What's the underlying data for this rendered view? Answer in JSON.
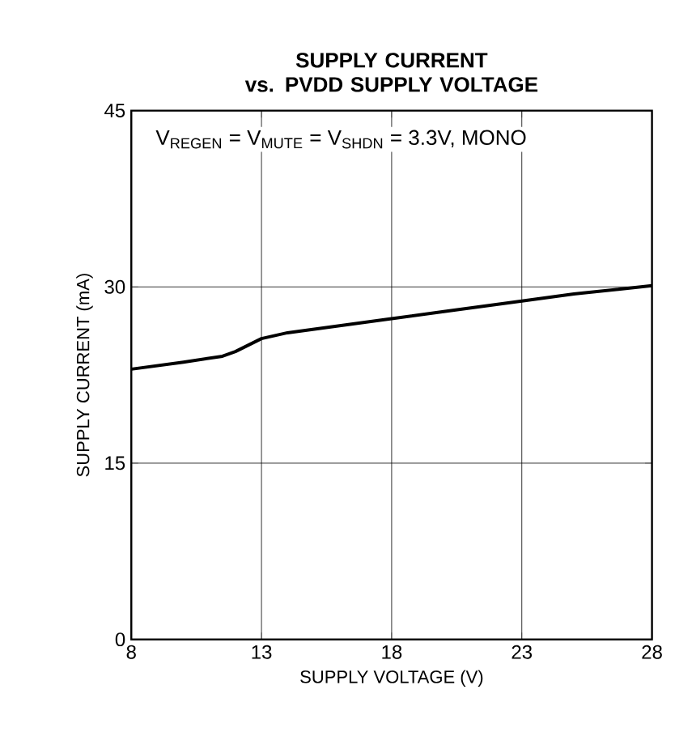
{
  "chart_data": {
    "type": "line",
    "title": "SUPPLY CURRENT\nvs. PVDD SUPPLY VOLTAGE",
    "xlabel": "SUPPLY VOLTAGE (V)",
    "ylabel": "SUPPLY CURRENT (mA)",
    "annotations": [
      "V$_{REGEN}$ = V$_{MUTE}$ = V$_{SHDN}$ = 3.3V, MONO"
    ],
    "x": [
      8,
      10,
      11.5,
      12,
      13,
      14,
      16,
      18,
      20,
      23,
      25,
      28
    ],
    "series": [
      {
        "color": "#000000",
        "values": [
          23,
          23.6,
          24.1,
          24.5,
          25.6,
          26.1,
          26.7,
          27.3,
          27.9,
          28.8,
          29.4,
          30.1
        ]
      }
    ],
    "xlim": [
      8,
      28
    ],
    "xticks": [
      8,
      13,
      18,
      23,
      28
    ],
    "ylim": [
      0,
      45
    ],
    "yticks": [
      0,
      15,
      30,
      45
    ],
    "grid": true,
    "marker": "none",
    "line_style": "solid"
  }
}
